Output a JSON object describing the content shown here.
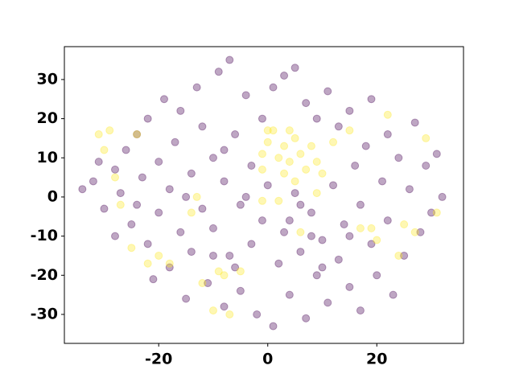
{
  "chart_data": {
    "type": "scatter",
    "xlim": [
      -37.3,
      35.9
    ],
    "ylim": [
      -37.4,
      38.4
    ],
    "xticks": [
      -20,
      0,
      20
    ],
    "yticks": [
      -30,
      -20,
      -10,
      0,
      10,
      20,
      30
    ],
    "opacity": 0.35,
    "series": [
      {
        "color": "#440154",
        "x": [
          -34,
          -32,
          -31,
          -30,
          -28,
          -28,
          -27,
          -26,
          -25,
          -24,
          -24,
          -23,
          -22,
          -22,
          -21,
          -20,
          -20,
          -19,
          -18,
          -18,
          -17,
          -16,
          -16,
          -15,
          -14,
          -14,
          -13,
          -12,
          -12,
          -11,
          -10,
          -10,
          -9,
          -8,
          -8,
          -7,
          -7,
          -6,
          -5,
          -5,
          -4,
          -3,
          -3,
          -2,
          -1,
          -1,
          0,
          1,
          1,
          2,
          3,
          3,
          4,
          5,
          5,
          6,
          7,
          7,
          8,
          9,
          9,
          10,
          11,
          11,
          12,
          13,
          13,
          14,
          15,
          15,
          16,
          17,
          17,
          18,
          19,
          19,
          20,
          21,
          22,
          22,
          23,
          24,
          25,
          26,
          27,
          28,
          29,
          30,
          31,
          32,
          -8,
          -6,
          -4,
          4,
          6,
          8,
          -15,
          15,
          -10,
          10
        ],
        "values": [
          2,
          4,
          9,
          -3,
          7,
          -10,
          1,
          12,
          -7,
          16,
          -2,
          5,
          -12,
          20,
          -21,
          9,
          -4,
          25,
          -18,
          2,
          14,
          -9,
          22,
          -26,
          6,
          -14,
          28,
          -3,
          18,
          -22,
          10,
          -8,
          32,
          -28,
          4,
          35,
          -15,
          16,
          -2,
          -24,
          26,
          8,
          -12,
          -30,
          20,
          -6,
          3,
          -33,
          28,
          -17,
          -9,
          31,
          -25,
          33,
          1,
          -14,
          24,
          -31,
          -4,
          20,
          -20,
          -11,
          27,
          -27,
          3,
          -16,
          18,
          -7,
          22,
          -23,
          8,
          -2,
          -29,
          13,
          -12,
          25,
          -20,
          4,
          -6,
          16,
          -25,
          10,
          -15,
          2,
          19,
          -9,
          8,
          -4,
          11,
          0,
          12,
          -18,
          0,
          -6,
          -2,
          -10,
          0,
          -10,
          -15,
          -18
        ]
      },
      {
        "color": "#fde725",
        "x": [
          -31,
          -30,
          -29,
          -28,
          -27,
          -25,
          -22,
          -20,
          -18,
          -14,
          -12,
          -10,
          -8,
          -9,
          -13,
          -7,
          1,
          0,
          -1,
          2,
          3,
          4,
          5,
          6,
          7,
          8,
          3,
          5,
          -1,
          2,
          0,
          4,
          9,
          10,
          -1,
          6,
          9,
          12,
          15,
          17,
          19,
          20,
          24,
          25,
          27,
          29,
          31,
          22,
          -5,
          -24
        ],
        "values": [
          16,
          12,
          17,
          5,
          -2,
          -13,
          -17,
          -15,
          -17,
          -4,
          -22,
          -29,
          -20,
          -19,
          0,
          -30,
          17,
          14,
          11,
          10,
          13,
          9,
          15,
          11,
          7,
          13,
          6,
          4,
          -1,
          -1,
          17,
          17,
          9,
          6,
          7,
          -9,
          1,
          14,
          17,
          -8,
          -8,
          -11,
          -15,
          -7,
          -9,
          15,
          -4,
          21,
          -19,
          16
        ]
      }
    ]
  }
}
